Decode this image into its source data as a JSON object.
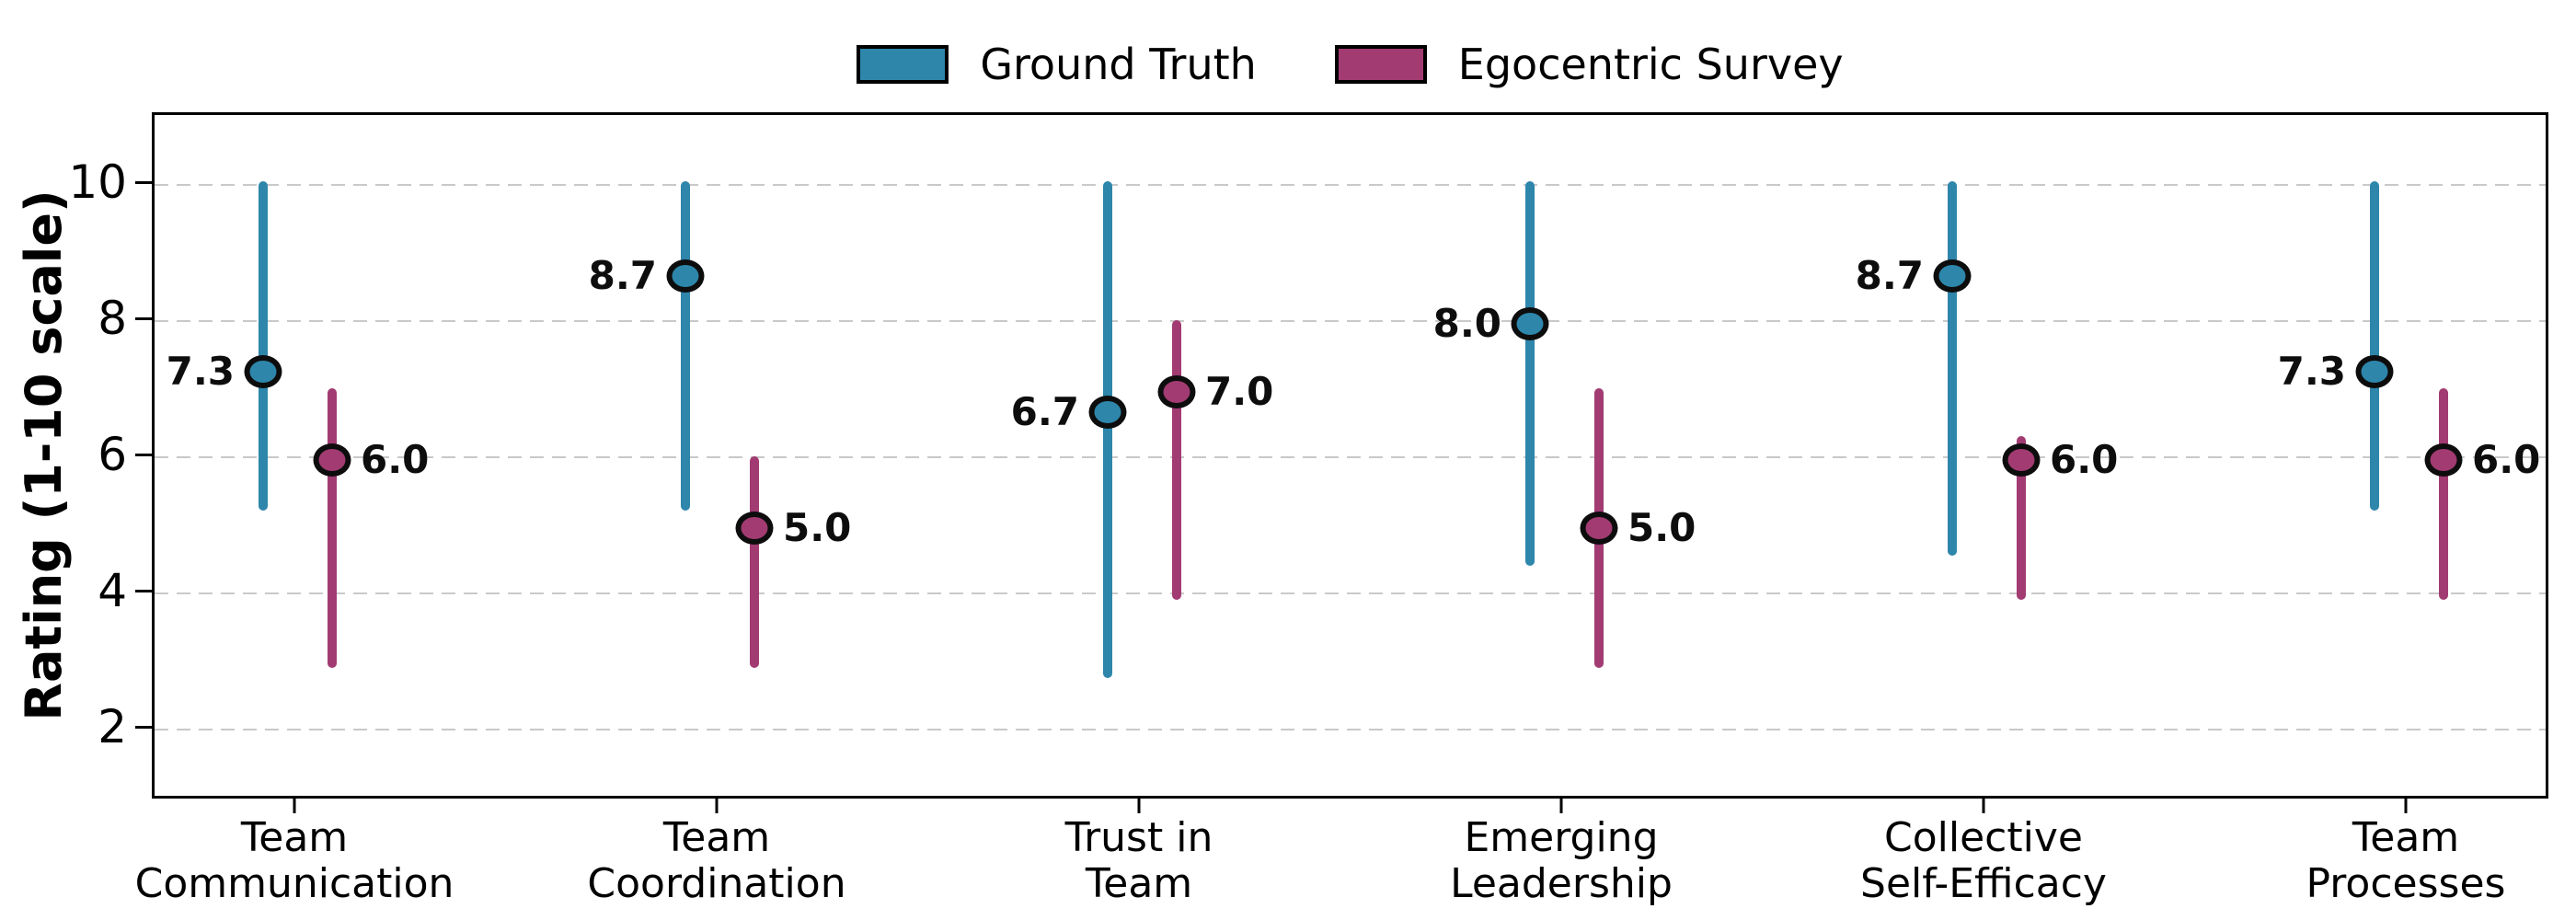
{
  "chart_data": {
    "type": "scatter",
    "title": "",
    "ylabel": "Rating (1-10 scale)",
    "ylim": [
      1,
      11
    ],
    "yticks": [
      2,
      4,
      6,
      8,
      10
    ],
    "ytick_labels": [
      "2",
      "4",
      "6",
      "8",
      "10"
    ],
    "grid": "horizontal-dashed",
    "grid_color": "#c9c9c9",
    "legend_position": "top-center",
    "categories": [
      "Team\nCommunication",
      "Team\nCoordination",
      "Trust in\nTeam",
      "Emerging\nLeadership",
      "Collective\nSelf-Efficacy",
      "Team\nProcesses"
    ],
    "series": [
      {
        "name": "Ground Truth",
        "color": "#2E86AB",
        "label_side": "left",
        "values": [
          7.3,
          8.7,
          6.7,
          8.0,
          8.7,
          7.3
        ],
        "value_labels": [
          "7.3",
          "8.7",
          "6.7",
          "8.0",
          "8.7",
          "7.3"
        ],
        "err_lo": [
          5.25,
          5.25,
          2.8,
          4.45,
          4.6,
          5.25
        ],
        "err_hi": [
          10.1,
          10.1,
          10.1,
          10.1,
          10.1,
          10.1
        ]
      },
      {
        "name": "Egocentric Survey",
        "color": "#A23B72",
        "label_side": "right",
        "values": [
          6.0,
          5.0,
          7.0,
          5.0,
          6.0,
          6.0
        ],
        "value_labels": [
          "6.0",
          "5.0",
          "7.0",
          "5.0",
          "6.0",
          "6.0"
        ],
        "err_lo": [
          2.95,
          2.95,
          3.95,
          2.95,
          3.95,
          3.95
        ],
        "err_hi": [
          7.05,
          6.05,
          8.05,
          7.05,
          6.35,
          7.05
        ]
      }
    ],
    "marker_edge_color": "#0d0d0d",
    "axes_color": "#000000",
    "background_color": "#ffffff"
  }
}
